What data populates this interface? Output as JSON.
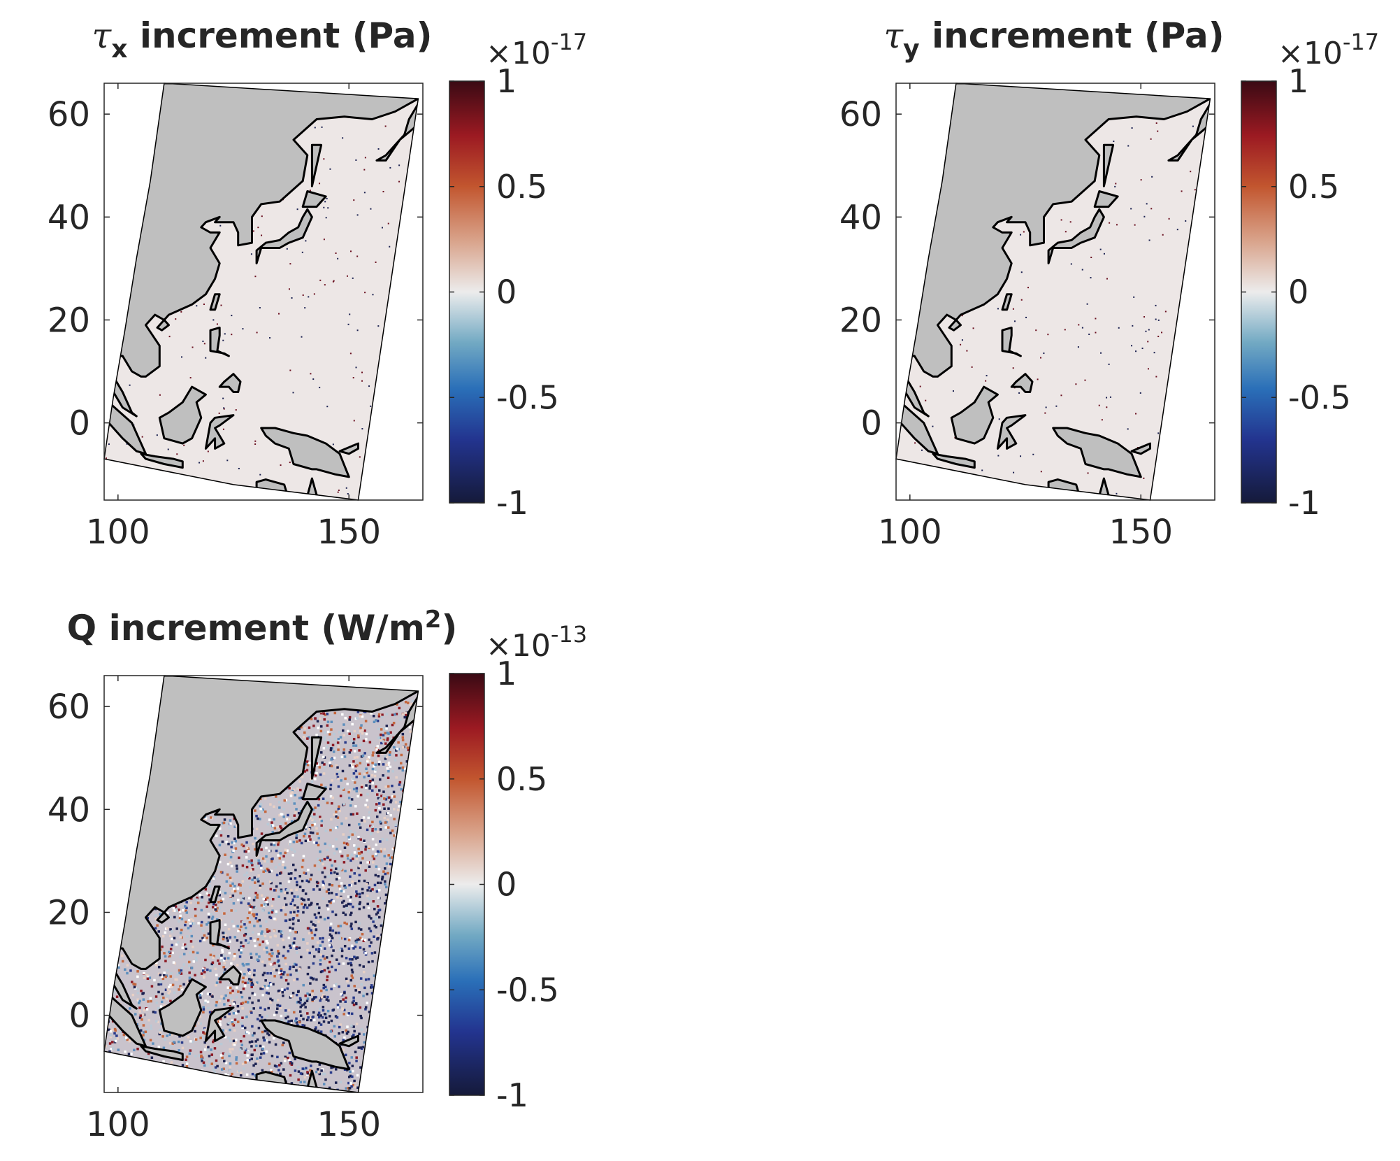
{
  "chart_data": [
    {
      "type": "map",
      "title": {
        "main": "τ",
        "sub": "x",
        "rest": " increment (Pa)"
      },
      "xlim": [
        97,
        166
      ],
      "xticks": [
        100,
        150
      ],
      "ylim": [
        -15,
        66
      ],
      "yticks": [
        0,
        20,
        40,
        60
      ],
      "ocean_color": "#ede7e6",
      "land_color": "#bfbfbf",
      "colorbar": {
        "lim": [
          -1,
          1
        ],
        "ticks": [
          -1,
          -0.5,
          0,
          0.5,
          1
        ],
        "multiplier": {
          "base": "×10",
          "exponent": "-17"
        }
      }
    },
    {
      "type": "map",
      "title": {
        "main": "τ",
        "sub": "y",
        "rest": " increment (Pa)"
      },
      "xlim": [
        97,
        166
      ],
      "xticks": [
        100,
        150
      ],
      "ylim": [
        -15,
        66
      ],
      "yticks": [
        0,
        20,
        40,
        60
      ],
      "ocean_color": "#ede7e6",
      "land_color": "#bfbfbf",
      "colorbar": {
        "lim": [
          -1,
          1
        ],
        "ticks": [
          -1,
          -0.5,
          0,
          0.5,
          1
        ],
        "multiplier": {
          "base": "×10",
          "exponent": "-17"
        }
      }
    },
    {
      "type": "map",
      "title": {
        "main": "Q increment (W/m",
        "sup": "2",
        "rest": ")"
      },
      "xlim": [
        97,
        166
      ],
      "xticks": [
        100,
        150
      ],
      "ylim": [
        -15,
        66
      ],
      "yticks": [
        0,
        20,
        40,
        60
      ],
      "ocean_color": "#c9c3cc",
      "ocean_pattern": "speckle",
      "land_color": "#bfbfbf",
      "colorbar": {
        "lim": [
          -1,
          1
        ],
        "ticks": [
          -1,
          -0.5,
          0,
          0.5,
          1
        ],
        "multiplier": {
          "base": "×10",
          "exponent": "-13"
        }
      }
    }
  ]
}
